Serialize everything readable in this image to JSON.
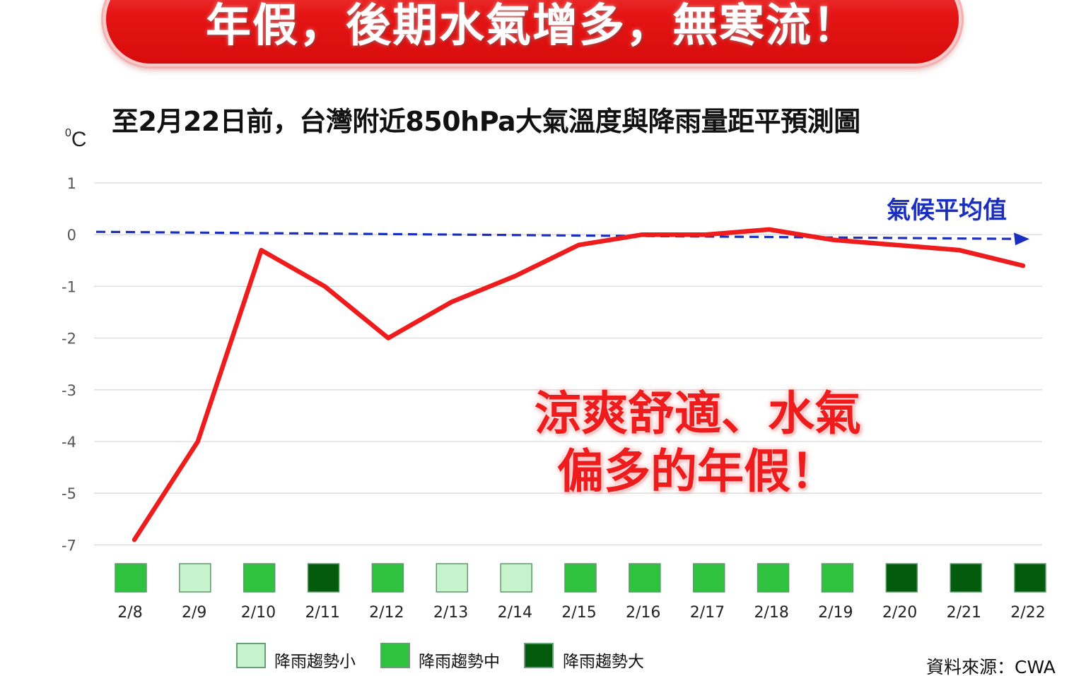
{
  "banner": {
    "title": "年假，後期水氣增多，無寒流！",
    "color": "#e51414"
  },
  "chart_data": {
    "type": "line",
    "title": "至2月22日前，台灣附近850hPa大氣溫度與降雨量距平預測圖",
    "ylabel": "C",
    "ylabel_superscript": "0",
    "ylim": [
      -7,
      1
    ],
    "y_ticks": [
      "1",
      "0",
      "-1",
      "-2",
      "-3",
      "-4",
      "-5",
      "-7"
    ],
    "categories": [
      "2/8",
      "2/9",
      "2/10",
      "2/11",
      "2/12",
      "2/13",
      "2/14",
      "2/15",
      "2/16",
      "2/17",
      "2/18",
      "2/19",
      "2/20",
      "2/21",
      "2/22"
    ],
    "series": [
      {
        "name": "",
        "color": "#ee1c1c",
        "values": [
          -6.8,
          -4.0,
          -0.3,
          -1.0,
          -2.0,
          -1.3,
          -0.8,
          -0.2,
          0.0,
          0.0,
          0.1,
          -0.1,
          -0.2,
          -0.3,
          -0.6
        ]
      }
    ],
    "reference_line": {
      "label": "氣候平均值",
      "value": 0,
      "color": "#1a2fc0",
      "style": "dashed-arrow"
    },
    "rain_trend": {
      "levels": [
        "medium",
        "small",
        "medium",
        "large",
        "medium",
        "small",
        "small",
        "medium",
        "medium",
        "medium",
        "medium",
        "medium",
        "large",
        "large",
        "large"
      ]
    },
    "legend": {
      "placement": "bottom",
      "items": [
        {
          "key": "small",
          "label": "降雨趨勢小",
          "color": "#c6f2cc"
        },
        {
          "key": "medium",
          "label": "降雨趨勢中",
          "color": "#2fc23f"
        },
        {
          "key": "large",
          "label": "降雨趨勢大",
          "color": "#035c0c"
        }
      ]
    },
    "grid": true
  },
  "annotation": {
    "line1": "涼爽舒適、水氣",
    "line2": "偏多的年假！"
  },
  "source": "資料來源：CWA"
}
